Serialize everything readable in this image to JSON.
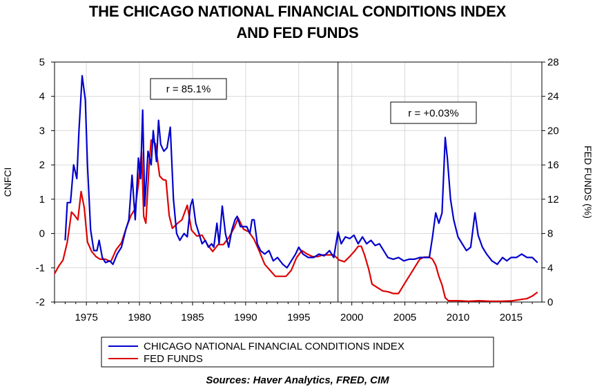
{
  "title_line1": "THE CHICAGO NATIONAL FINANCIAL CONDITIONS INDEX",
  "title_line2": "AND FED FUNDS",
  "source": "Sources:  Haver Analytics, FRED, CIM",
  "annotations": [
    "r = 85.1%",
    "r = +0.03%"
  ],
  "colors": {
    "cnfci": "#0000cc",
    "fedfunds": "#dd0000"
  },
  "chart_data": {
    "type": "line",
    "ylabel": "CNFCI",
    "y2label": "FED FUNDS (%)",
    "x_ticks": [
      "1975",
      "1980",
      "1985",
      "1990",
      "1995",
      "2000",
      "2005",
      "2010",
      "2015"
    ],
    "x_tick_values": [
      1975,
      1980,
      1985,
      1990,
      1995,
      2000,
      2005,
      2010,
      2015
    ],
    "y_ticks": [
      "5",
      "4",
      "3",
      "2",
      "1",
      "0",
      "-1",
      "-2"
    ],
    "y_tick_values": [
      5,
      4,
      3,
      2,
      1,
      0,
      -1,
      -2
    ],
    "y2_ticks": [
      "28",
      "24",
      "20",
      "16",
      "12",
      "8",
      "4",
      "0"
    ],
    "y2_tick_values": [
      28,
      24,
      20,
      16,
      12,
      8,
      4,
      0
    ],
    "xlim": [
      1972,
      2017.9
    ],
    "ylim": [
      -2,
      5
    ],
    "y2lim": [
      0,
      28
    ],
    "divider_x": 1998.7,
    "legend_position": "bottom",
    "grid": true,
    "series": [
      {
        "name": "CHICAGO NATIONAL FINANCIAL CONDITIONS INDEX",
        "axis": "left",
        "points": [
          [
            1973.0,
            -0.2
          ],
          [
            1973.2,
            0.9
          ],
          [
            1973.5,
            0.9
          ],
          [
            1973.8,
            2.0
          ],
          [
            1974.1,
            1.6
          ],
          [
            1974.3,
            3.0
          ],
          [
            1974.6,
            4.6
          ],
          [
            1974.9,
            3.9
          ],
          [
            1975.1,
            2.0
          ],
          [
            1975.4,
            0.1
          ],
          [
            1975.7,
            -0.5
          ],
          [
            1976.0,
            -0.5
          ],
          [
            1976.2,
            -0.2
          ],
          [
            1976.5,
            -0.7
          ],
          [
            1976.8,
            -0.85
          ],
          [
            1977.2,
            -0.8
          ],
          [
            1977.5,
            -0.9
          ],
          [
            1977.9,
            -0.6
          ],
          [
            1978.3,
            -0.4
          ],
          [
            1978.7,
            0.1
          ],
          [
            1979.0,
            0.4
          ],
          [
            1979.3,
            1.7
          ],
          [
            1979.6,
            0.4
          ],
          [
            1979.9,
            2.2
          ],
          [
            1980.1,
            1.6
          ],
          [
            1980.3,
            3.6
          ],
          [
            1980.5,
            0.8
          ],
          [
            1980.8,
            2.4
          ],
          [
            1981.1,
            2.0
          ],
          [
            1981.3,
            3.0
          ],
          [
            1981.6,
            2.1
          ],
          [
            1981.8,
            3.3
          ],
          [
            1982.0,
            2.6
          ],
          [
            1982.3,
            2.4
          ],
          [
            1982.6,
            2.5
          ],
          [
            1982.9,
            3.1
          ],
          [
            1983.2,
            1.0
          ],
          [
            1983.5,
            0.0
          ],
          [
            1983.8,
            -0.2
          ],
          [
            1984.2,
            0.0
          ],
          [
            1984.5,
            -0.1
          ],
          [
            1984.8,
            0.8
          ],
          [
            1985.0,
            1.0
          ],
          [
            1985.3,
            0.3
          ],
          [
            1985.6,
            0.0
          ],
          [
            1985.9,
            -0.3
          ],
          [
            1986.2,
            -0.2
          ],
          [
            1986.5,
            -0.4
          ],
          [
            1986.8,
            -0.3
          ],
          [
            1987.0,
            -0.4
          ],
          [
            1987.3,
            0.3
          ],
          [
            1987.5,
            -0.3
          ],
          [
            1987.8,
            0.8
          ],
          [
            1988.1,
            0.0
          ],
          [
            1988.4,
            -0.4
          ],
          [
            1988.7,
            0.1
          ],
          [
            1989.0,
            0.4
          ],
          [
            1989.2,
            0.5
          ],
          [
            1989.5,
            0.2
          ],
          [
            1989.8,
            0.2
          ],
          [
            1990.1,
            0.2
          ],
          [
            1990.4,
            0.0
          ],
          [
            1990.6,
            0.4
          ],
          [
            1990.8,
            0.4
          ],
          [
            1991.1,
            -0.3
          ],
          [
            1991.4,
            -0.5
          ],
          [
            1991.8,
            -0.6
          ],
          [
            1992.2,
            -0.5
          ],
          [
            1992.6,
            -0.8
          ],
          [
            1993.0,
            -0.7
          ],
          [
            1993.5,
            -0.9
          ],
          [
            1993.9,
            -1.0
          ],
          [
            1994.3,
            -0.8
          ],
          [
            1994.7,
            -0.6
          ],
          [
            1995.0,
            -0.4
          ],
          [
            1995.4,
            -0.6
          ],
          [
            1995.9,
            -0.7
          ],
          [
            1996.4,
            -0.7
          ],
          [
            1996.9,
            -0.6
          ],
          [
            1997.4,
            -0.65
          ],
          [
            1997.9,
            -0.5
          ],
          [
            1998.3,
            -0.7
          ],
          [
            1998.7,
            0.05
          ],
          [
            1999.0,
            -0.3
          ],
          [
            1999.4,
            -0.1
          ],
          [
            1999.8,
            -0.15
          ],
          [
            2000.2,
            -0.05
          ],
          [
            2000.6,
            -0.3
          ],
          [
            2001.0,
            -0.1
          ],
          [
            2001.4,
            -0.3
          ],
          [
            2001.8,
            -0.2
          ],
          [
            2002.2,
            -0.35
          ],
          [
            2002.6,
            -0.3
          ],
          [
            2003.0,
            -0.5
          ],
          [
            2003.4,
            -0.7
          ],
          [
            2003.9,
            -0.75
          ],
          [
            2004.4,
            -0.7
          ],
          [
            2004.9,
            -0.8
          ],
          [
            2005.4,
            -0.75
          ],
          [
            2005.9,
            -0.75
          ],
          [
            2006.4,
            -0.7
          ],
          [
            2006.9,
            -0.7
          ],
          [
            2007.3,
            -0.7
          ],
          [
            2007.6,
            -0.1
          ],
          [
            2007.9,
            0.6
          ],
          [
            2008.2,
            0.3
          ],
          [
            2008.5,
            0.6
          ],
          [
            2008.8,
            2.8
          ],
          [
            2009.0,
            2.2
          ],
          [
            2009.3,
            1.0
          ],
          [
            2009.6,
            0.4
          ],
          [
            2010.0,
            -0.1
          ],
          [
            2010.4,
            -0.3
          ],
          [
            2010.8,
            -0.5
          ],
          [
            2011.2,
            -0.4
          ],
          [
            2011.6,
            0.6
          ],
          [
            2011.9,
            -0.05
          ],
          [
            2012.3,
            -0.4
          ],
          [
            2012.7,
            -0.6
          ],
          [
            2013.2,
            -0.8
          ],
          [
            2013.7,
            -0.9
          ],
          [
            2014.2,
            -0.7
          ],
          [
            2014.6,
            -0.8
          ],
          [
            2015.0,
            -0.7
          ],
          [
            2015.5,
            -0.7
          ],
          [
            2016.0,
            -0.6
          ],
          [
            2016.5,
            -0.7
          ],
          [
            2017.0,
            -0.7
          ],
          [
            2017.5,
            -0.85
          ]
        ]
      },
      {
        "name": "FED FUNDS",
        "axis": "right",
        "points": [
          [
            1972.0,
            3.3
          ],
          [
            1972.4,
            4.2
          ],
          [
            1972.8,
            4.9
          ],
          [
            1973.2,
            7.0
          ],
          [
            1973.6,
            10.5
          ],
          [
            1973.9,
            10.1
          ],
          [
            1974.2,
            9.6
          ],
          [
            1974.5,
            12.9
          ],
          [
            1974.8,
            11.0
          ],
          [
            1975.1,
            7.0
          ],
          [
            1975.5,
            5.9
          ],
          [
            1975.9,
            5.3
          ],
          [
            1976.3,
            5.0
          ],
          [
            1976.8,
            5.0
          ],
          [
            1977.3,
            4.7
          ],
          [
            1977.8,
            6.1
          ],
          [
            1978.3,
            6.9
          ],
          [
            1978.8,
            8.8
          ],
          [
            1979.2,
            10.1
          ],
          [
            1979.6,
            10.9
          ],
          [
            1979.9,
            13.8
          ],
          [
            1980.2,
            17.6
          ],
          [
            1980.4,
            10.0
          ],
          [
            1980.6,
            9.2
          ],
          [
            1980.9,
            15.9
          ],
          [
            1981.1,
            18.9
          ],
          [
            1981.5,
            18.5
          ],
          [
            1981.9,
            14.7
          ],
          [
            1982.2,
            14.3
          ],
          [
            1982.5,
            14.2
          ],
          [
            1982.8,
            10.1
          ],
          [
            1983.1,
            8.6
          ],
          [
            1983.6,
            9.2
          ],
          [
            1984.0,
            9.6
          ],
          [
            1984.5,
            11.3
          ],
          [
            1984.9,
            8.4
          ],
          [
            1985.4,
            7.7
          ],
          [
            1985.9,
            7.8
          ],
          [
            1986.4,
            6.7
          ],
          [
            1986.9,
            5.9
          ],
          [
            1987.4,
            6.7
          ],
          [
            1987.9,
            6.7
          ],
          [
            1988.4,
            7.5
          ],
          [
            1988.9,
            8.6
          ],
          [
            1989.3,
            9.8
          ],
          [
            1989.8,
            8.5
          ],
          [
            1990.3,
            8.2
          ],
          [
            1990.8,
            7.3
          ],
          [
            1991.3,
            5.9
          ],
          [
            1991.8,
            4.4
          ],
          [
            1992.3,
            3.7
          ],
          [
            1992.8,
            3.0
          ],
          [
            1993.3,
            3.0
          ],
          [
            1993.8,
            3.0
          ],
          [
            1994.3,
            3.7
          ],
          [
            1994.8,
            5.2
          ],
          [
            1995.3,
            6.0
          ],
          [
            1995.8,
            5.6
          ],
          [
            1996.3,
            5.3
          ],
          [
            1996.8,
            5.3
          ],
          [
            1997.3,
            5.5
          ],
          [
            1997.8,
            5.5
          ],
          [
            1998.3,
            5.5
          ],
          [
            1998.8,
            4.9
          ],
          [
            1999.3,
            4.7
          ],
          [
            1999.8,
            5.3
          ],
          [
            2000.3,
            6.0
          ],
          [
            2000.6,
            6.5
          ],
          [
            2000.9,
            6.5
          ],
          [
            2001.2,
            5.5
          ],
          [
            2001.6,
            3.8
          ],
          [
            2001.9,
            2.1
          ],
          [
            2002.4,
            1.7
          ],
          [
            2002.9,
            1.3
          ],
          [
            2003.4,
            1.2
          ],
          [
            2003.9,
            1.0
          ],
          [
            2004.4,
            1.0
          ],
          [
            2004.9,
            2.0
          ],
          [
            2005.4,
            3.0
          ],
          [
            2005.9,
            4.0
          ],
          [
            2006.4,
            5.0
          ],
          [
            2006.8,
            5.25
          ],
          [
            2007.3,
            5.25
          ],
          [
            2007.6,
            5.0
          ],
          [
            2007.9,
            4.3
          ],
          [
            2008.2,
            3.0
          ],
          [
            2008.5,
            2.0
          ],
          [
            2008.8,
            0.5
          ],
          [
            2009.1,
            0.15
          ],
          [
            2010.0,
            0.15
          ],
          [
            2011.0,
            0.1
          ],
          [
            2012.0,
            0.15
          ],
          [
            2013.0,
            0.1
          ],
          [
            2014.0,
            0.1
          ],
          [
            2015.0,
            0.13
          ],
          [
            2015.9,
            0.3
          ],
          [
            2016.5,
            0.4
          ],
          [
            2017.0,
            0.7
          ],
          [
            2017.5,
            1.15
          ]
        ]
      }
    ]
  }
}
